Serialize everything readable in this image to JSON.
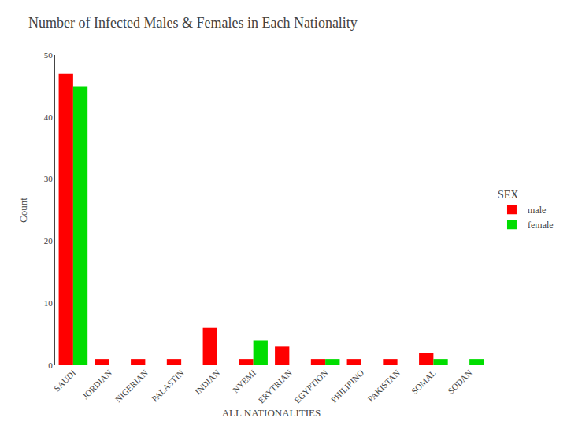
{
  "chart_data": {
    "type": "bar",
    "title": "Number of Infected Males & Females in Each Nationality",
    "xlabel": "ALL NATIONALITIES",
    "ylabel": "Count",
    "categories": [
      "SAUDI",
      "JORDIAN",
      "NIGERIAN",
      "PALASTIN",
      "INDIAN",
      "NYEMI",
      "ERYTRIAN",
      "EGYPTION",
      "PHILIPINO",
      "PAKISTAN",
      "SOMAL",
      "SODAN"
    ],
    "series": [
      {
        "name": "male",
        "color": "#ff0000",
        "values": [
          47,
          1,
          1,
          1,
          6,
          1,
          3,
          1,
          1,
          1,
          2,
          0
        ]
      },
      {
        "name": "female",
        "color": "#00dd00",
        "values": [
          45,
          0,
          0,
          0,
          0,
          4,
          0,
          1,
          0,
          0,
          1,
          1
        ]
      }
    ],
    "legend_title": "SEX",
    "ylim": [
      0,
      50
    ],
    "yticks": [
      0,
      10,
      20,
      30,
      40,
      50
    ],
    "grid": false,
    "legend": "right"
  }
}
